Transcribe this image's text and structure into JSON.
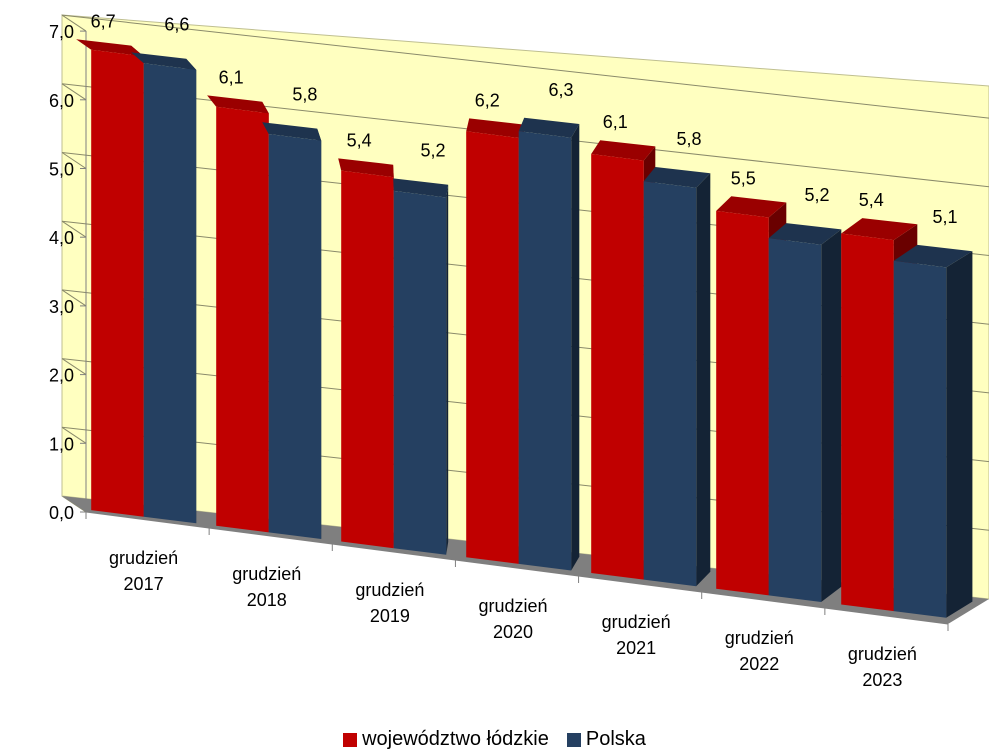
{
  "chart_data": {
    "type": "bar",
    "categories": [
      [
        "grudzień",
        "2017"
      ],
      [
        "grudzień",
        "2018"
      ],
      [
        "grudzień",
        "2019"
      ],
      [
        "grudzień",
        "2020"
      ],
      [
        "grudzień",
        "2021"
      ],
      [
        "grudzień",
        "2022"
      ],
      [
        "grudzień",
        "2023"
      ]
    ],
    "series": [
      {
        "name": "województwo łódzkie",
        "color": "#c00000",
        "values": [
          6.7,
          6.1,
          5.4,
          6.2,
          6.1,
          5.5,
          5.4
        ],
        "labels": [
          "6,7",
          "6,1",
          "5,4",
          "6,2",
          "6,1",
          "5,5",
          "5,4"
        ]
      },
      {
        "name": "Polska",
        "color": "#254061",
        "values": [
          6.6,
          5.8,
          5.2,
          6.3,
          5.8,
          5.2,
          5.1
        ],
        "labels": [
          "6,6",
          "5,8",
          "5,2",
          "6,3",
          "5,8",
          "5,2",
          "5,1"
        ]
      }
    ],
    "y_ticks": [
      0,
      1,
      2,
      3,
      4,
      5,
      6,
      7
    ],
    "y_tick_labels": [
      "0,0",
      "1,0",
      "2,0",
      "3,0",
      "4,0",
      "5,0",
      "6,0",
      "7,0"
    ],
    "ylim": [
      0,
      7
    ],
    "grid": true,
    "legend_position": "bottom",
    "style": "3d-perspective",
    "wall_color": "#ffffc0",
    "side_wall_color": "#a6a67c",
    "floor_color": "#7f7f7f"
  }
}
